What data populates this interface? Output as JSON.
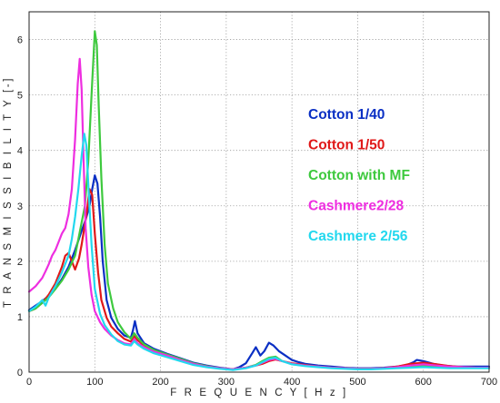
{
  "chart_data": {
    "type": "line",
    "title": "",
    "xlabel": "F R E Q U E N C Y [ H z ]",
    "ylabel": "T R A N S M I S S I B I L I T Y [-]",
    "xlim": [
      0,
      700
    ],
    "ylim": [
      0,
      6.5
    ],
    "xticks": [
      "0",
      "100",
      "200",
      "300",
      "400",
      "500",
      "600",
      "700"
    ],
    "yticks": [
      "0",
      "1",
      "2",
      "3",
      "4",
      "5",
      "6"
    ],
    "grid": true,
    "legend_position": "right",
    "series": [
      {
        "name": "Cotton 1/40",
        "color": "#0a2fc4",
        "x": [
          0,
          10,
          20,
          30,
          40,
          50,
          60,
          70,
          80,
          86,
          92,
          96,
          100,
          104,
          108,
          112,
          118,
          125,
          135,
          145,
          155,
          158,
          161,
          165,
          175,
          190,
          210,
          230,
          250,
          270,
          290,
          310,
          320,
          330,
          340,
          345,
          352,
          358,
          365,
          372,
          380,
          390,
          400,
          410,
          420,
          440,
          460,
          480,
          500,
          520,
          540,
          560,
          575,
          585,
          590,
          600,
          615,
          630,
          650,
          670,
          690,
          700
        ],
        "values": [
          1.12,
          1.2,
          1.28,
          1.38,
          1.5,
          1.68,
          1.9,
          2.2,
          2.55,
          2.75,
          3.0,
          3.3,
          3.55,
          3.4,
          2.8,
          2.0,
          1.3,
          0.98,
          0.78,
          0.66,
          0.62,
          0.75,
          0.92,
          0.7,
          0.52,
          0.42,
          0.33,
          0.25,
          0.17,
          0.12,
          0.08,
          0.05,
          0.09,
          0.16,
          0.35,
          0.45,
          0.3,
          0.38,
          0.53,
          0.48,
          0.38,
          0.3,
          0.22,
          0.18,
          0.15,
          0.12,
          0.1,
          0.08,
          0.07,
          0.07,
          0.08,
          0.1,
          0.13,
          0.18,
          0.22,
          0.2,
          0.15,
          0.12,
          0.1,
          0.1,
          0.1,
          0.1
        ]
      },
      {
        "name": "Cotton 1/50",
        "color": "#e01818",
        "x": [
          0,
          10,
          20,
          30,
          40,
          50,
          55,
          60,
          65,
          70,
          76,
          80,
          84,
          88,
          92,
          96,
          100,
          105,
          110,
          118,
          125,
          135,
          145,
          155,
          160,
          165,
          175,
          190,
          210,
          230,
          250,
          270,
          290,
          310,
          330,
          345,
          355,
          365,
          375,
          385,
          400,
          420,
          440,
          460,
          480,
          500,
          520,
          540,
          560,
          580,
          600,
          620,
          640,
          660,
          680,
          700
        ],
        "values": [
          1.1,
          1.15,
          1.25,
          1.4,
          1.6,
          1.9,
          2.1,
          2.15,
          2.0,
          1.85,
          2.05,
          2.3,
          2.6,
          2.9,
          3.3,
          3.2,
          2.5,
          1.8,
          1.3,
          0.98,
          0.82,
          0.7,
          0.6,
          0.55,
          0.65,
          0.58,
          0.48,
          0.38,
          0.3,
          0.22,
          0.15,
          0.1,
          0.07,
          0.05,
          0.08,
          0.12,
          0.15,
          0.2,
          0.23,
          0.2,
          0.16,
          0.13,
          0.1,
          0.08,
          0.07,
          0.06,
          0.06,
          0.07,
          0.1,
          0.15,
          0.17,
          0.14,
          0.11,
          0.09,
          0.08,
          0.08
        ]
      },
      {
        "name": "Cotton with MF",
        "color": "#3ec93e",
        "x": [
          0,
          10,
          20,
          30,
          40,
          50,
          60,
          70,
          75,
          80,
          85,
          90,
          95,
          100,
          103,
          106,
          110,
          115,
          120,
          128,
          135,
          145,
          155,
          160,
          165,
          175,
          190,
          210,
          230,
          250,
          270,
          290,
          310,
          330,
          345,
          355,
          365,
          375,
          385,
          400,
          420,
          440,
          460,
          480,
          500,
          520,
          540,
          560,
          580,
          600,
          620,
          640,
          660,
          680,
          700
        ],
        "values": [
          1.1,
          1.15,
          1.25,
          1.35,
          1.5,
          1.65,
          1.85,
          2.1,
          2.4,
          2.7,
          3.0,
          3.8,
          5.0,
          6.15,
          5.9,
          4.8,
          3.5,
          2.3,
          1.6,
          1.15,
          0.9,
          0.72,
          0.6,
          0.7,
          0.62,
          0.5,
          0.4,
          0.32,
          0.24,
          0.16,
          0.11,
          0.07,
          0.05,
          0.08,
          0.13,
          0.2,
          0.26,
          0.28,
          0.2,
          0.15,
          0.12,
          0.1,
          0.08,
          0.07,
          0.06,
          0.06,
          0.07,
          0.08,
          0.1,
          0.11,
          0.1,
          0.09,
          0.08,
          0.08,
          0.08
        ]
      },
      {
        "name": "Cashmere2/28",
        "color": "#ee2ee0",
        "x": [
          0,
          10,
          20,
          25,
          30,
          35,
          40,
          45,
          50,
          55,
          60,
          65,
          70,
          74,
          77,
          80,
          83,
          86,
          90,
          95,
          100,
          108,
          115,
          125,
          135,
          145,
          155,
          160,
          165,
          175,
          190,
          210,
          230,
          250,
          270,
          290,
          310,
          330,
          345,
          355,
          365,
          375,
          385,
          400,
          420,
          440,
          460,
          480,
          500,
          520,
          540,
          560,
          580,
          600,
          620,
          640,
          660,
          680,
          700
        ],
        "values": [
          1.45,
          1.55,
          1.7,
          1.82,
          1.95,
          2.1,
          2.2,
          2.35,
          2.5,
          2.6,
          2.85,
          3.3,
          4.2,
          5.2,
          5.65,
          5.1,
          3.8,
          2.6,
          1.9,
          1.4,
          1.1,
          0.9,
          0.78,
          0.66,
          0.58,
          0.52,
          0.5,
          0.6,
          0.52,
          0.45,
          0.37,
          0.3,
          0.22,
          0.15,
          0.1,
          0.07,
          0.05,
          0.08,
          0.12,
          0.17,
          0.22,
          0.24,
          0.2,
          0.15,
          0.12,
          0.1,
          0.08,
          0.07,
          0.06,
          0.06,
          0.07,
          0.09,
          0.12,
          0.14,
          0.12,
          0.1,
          0.09,
          0.08,
          0.08
        ]
      },
      {
        "name": "Cashmere 2/56",
        "color": "#22d8ee",
        "x": [
          0,
          10,
          20,
          25,
          30,
          40,
          50,
          60,
          65,
          70,
          75,
          80,
          84,
          87,
          90,
          95,
          100,
          108,
          115,
          125,
          135,
          145,
          155,
          160,
          165,
          175,
          190,
          210,
          230,
          250,
          270,
          290,
          310,
          330,
          345,
          355,
          365,
          375,
          385,
          400,
          420,
          440,
          460,
          480,
          500,
          520,
          540,
          560,
          580,
          600,
          620,
          640,
          660,
          680,
          700
        ],
        "values": [
          1.1,
          1.18,
          1.3,
          1.2,
          1.35,
          1.55,
          1.8,
          2.1,
          2.4,
          2.8,
          3.3,
          3.9,
          4.3,
          4.1,
          3.4,
          2.3,
          1.5,
          1.05,
          0.85,
          0.68,
          0.56,
          0.5,
          0.48,
          0.56,
          0.5,
          0.42,
          0.34,
          0.27,
          0.2,
          0.13,
          0.09,
          0.06,
          0.04,
          0.07,
          0.12,
          0.18,
          0.24,
          0.26,
          0.2,
          0.14,
          0.11,
          0.09,
          0.07,
          0.06,
          0.05,
          0.05,
          0.06,
          0.07,
          0.08,
          0.09,
          0.08,
          0.07,
          0.07,
          0.07,
          0.07
        ]
      }
    ]
  }
}
